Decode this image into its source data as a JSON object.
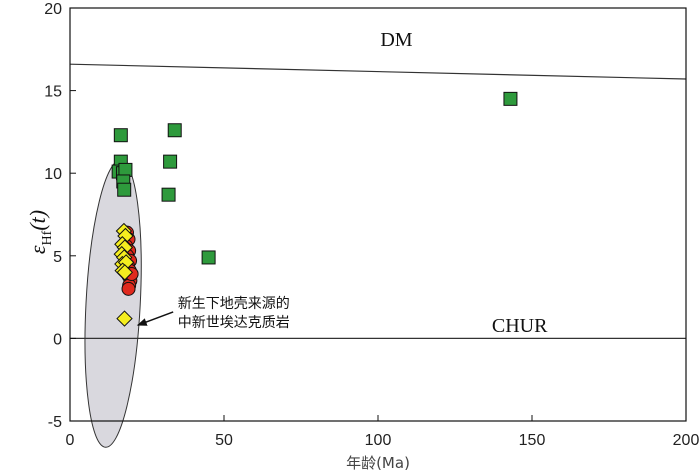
{
  "chart_data": {
    "type": "scatter",
    "xlabel": "年龄(Ma)",
    "ylabel": {
      "main": "ε",
      "sub": "Hf",
      "tail": "(t)"
    },
    "xlim": [
      0,
      200
    ],
    "ylim": [
      -5,
      20
    ],
    "x_ticks": [
      "0",
      "50",
      "100",
      "150",
      "200"
    ],
    "y_ticks": [
      "-5",
      "0",
      "5",
      "10",
      "15",
      "20"
    ],
    "x_tick_values": [
      0,
      50,
      100,
      150,
      200
    ],
    "y_tick_values": [
      -5,
      0,
      5,
      10,
      15,
      20
    ],
    "grid": false,
    "reference_lines": [
      {
        "name": "DM",
        "x": [
          0,
          200
        ],
        "y": [
          16.6,
          15.7
        ],
        "label_at": [
          106,
          17.7
        ]
      },
      {
        "name": "CHUR",
        "x": [
          0,
          200
        ],
        "y": [
          0,
          0
        ],
        "label_at": [
          146,
          0.4
        ]
      }
    ],
    "series": [
      {
        "marker": "square",
        "color": "#2e9a3c",
        "points": [
          [
            16.5,
            12.3
          ],
          [
            16.5,
            10.7
          ],
          [
            15.8,
            10.1
          ],
          [
            17.2,
            10.0
          ],
          [
            18.0,
            10.2
          ],
          [
            17.3,
            9.5
          ],
          [
            17.6,
            9.0
          ],
          [
            34.0,
            12.6
          ],
          [
            32.5,
            10.7
          ],
          [
            32.0,
            8.7
          ],
          [
            45.0,
            4.9
          ],
          [
            143.0,
            14.5
          ]
        ]
      },
      {
        "marker": "circle",
        "color": "#e02a1e",
        "points": [
          [
            18.5,
            6.4
          ],
          [
            19.0,
            6.0
          ],
          [
            18.2,
            5.6
          ],
          [
            19.2,
            5.3
          ],
          [
            18.6,
            5.0
          ],
          [
            19.5,
            4.7
          ],
          [
            18.8,
            4.4
          ],
          [
            19.4,
            4.1
          ],
          [
            19.0,
            3.8
          ],
          [
            19.6,
            3.5
          ],
          [
            19.2,
            3.2
          ],
          [
            19.0,
            3.0
          ],
          [
            20.0,
            3.9
          ]
        ]
      },
      {
        "marker": "diamond",
        "color": "#f5ee1f",
        "points": [
          [
            17.5,
            6.5
          ],
          [
            18.0,
            6.2
          ],
          [
            17.0,
            5.7
          ],
          [
            17.8,
            5.5
          ],
          [
            16.8,
            5.1
          ],
          [
            17.6,
            4.9
          ],
          [
            17.0,
            4.5
          ],
          [
            18.2,
            4.6
          ],
          [
            17.1,
            4.1
          ],
          [
            17.8,
            4.0
          ],
          [
            17.7,
            1.2
          ]
        ]
      }
    ],
    "ellipse": {
      "cx": 14,
      "cy": 2.1,
      "rx": 8.8,
      "ry": 8.7,
      "rotation_deg": 3,
      "fill": "#d9d8de",
      "stroke": "#333333"
    },
    "annotation": {
      "lines": [
        "新生下地壳来源的",
        "中新世埃达克质岩"
      ],
      "text_at": [
        35,
        1.85
      ],
      "arrow_from": [
        33.5,
        1.6
      ],
      "arrow_to": [
        22,
        0.8
      ]
    }
  }
}
